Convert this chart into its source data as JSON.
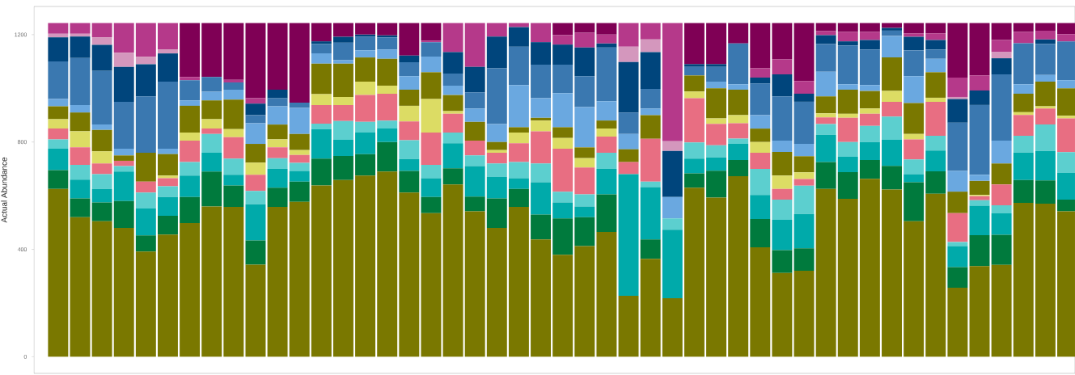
{
  "chart_data": {
    "type": "bar",
    "stacked": true,
    "ylabel": "Actual Abundance",
    "categories": [
      null,
      null,
      null,
      null,
      null,
      null,
      null,
      null,
      null,
      null,
      null,
      null,
      null,
      null,
      null,
      null,
      null,
      null,
      null,
      null,
      null,
      null,
      null,
      null,
      null,
      null,
      null,
      null,
      null,
      null,
      null,
      null,
      null,
      null,
      null,
      null,
      null,
      null,
      null,
      null,
      null,
      null,
      null,
      null,
      null,
      null,
      null
    ],
    "ylim": [
      -62,
      1305
    ],
    "yticks": [
      0,
      400,
      800,
      1200
    ],
    "series": [
      {
        "color": "#7a7800",
        "values": [
          625,
          520,
          505,
          480,
          392,
          455,
          498,
          560,
          558,
          343,
          558,
          577,
          638,
          658,
          675,
          690,
          612,
          535,
          642,
          542,
          480,
          558,
          437,
          380,
          412,
          465,
          227,
          365,
          218,
          630,
          593,
          673,
          408,
          312,
          320,
          625,
          588,
          663,
          623,
          505,
          607,
          257,
          338,
          342,
          573,
          570,
          542
        ]
      },
      {
        "color": "#007a3d",
        "values": [
          70,
          70,
          70,
          100,
          60,
          70,
          97,
          130,
          80,
          90,
          72,
          75,
          100,
          90,
          80,
          110,
          80,
          60,
          60,
          55,
          110,
          67,
          93,
          135,
          108,
          140,
          0,
          72,
          0,
          53,
          100,
          60,
          105,
          85,
          84,
          100,
          100,
          70,
          88,
          145,
          84,
          77,
          115,
          112,
          85,
          87,
          43
        ]
      },
      {
        "color": "#00aaaa",
        "values": [
          80,
          70,
          50,
          110,
          100,
          70,
          80,
          70,
          40,
          135,
          70,
          40,
          110,
          60,
          80,
          50,
          45,
          70,
          93,
          113,
          80,
          40,
          120,
          60,
          40,
          95,
          453,
          195,
          255,
          55,
          50,
          60,
          90,
          113,
          128,
          102,
          57,
          67,
          97,
          30,
          77,
          78,
          110,
          80,
          103,
          110,
          100
        ]
      },
      {
        "color": "#5ccfcf",
        "values": [
          35,
          55,
          55,
          20,
          60,
          40,
          50,
          70,
          60,
          50,
          40,
          30,
          20,
          70,
          40,
          30,
          70,
          50,
          40,
          40,
          50,
          60,
          70,
          40,
          45,
          60,
          0,
          20,
          42,
          60,
          45,
          20,
          97,
          75,
          105,
          40,
          55,
          60,
          87,
          55,
          55,
          15,
          20,
          30,
          62,
          98,
          77
        ]
      },
      {
        "color": "#e86e82",
        "values": [
          40,
          65,
          40,
          20,
          40,
          30,
          80,
          20,
          80,
          60,
          40,
          30,
          70,
          60,
          100,
          100,
          70,
          120,
          70,
          55,
          40,
          70,
          120,
          160,
          100,
          60,
          45,
          160,
          0,
          165,
          80,
          57,
          60,
          40,
          25,
          25,
          90,
          45,
          55,
          75,
          127,
          108,
          15,
          78,
          78,
          60,
          126
        ]
      },
      {
        "color": "#dcdc64",
        "values": [
          35,
          60,
          45,
          0,
          0,
          10,
          30,
          35,
          30,
          45,
          30,
          18,
          40,
          30,
          50,
          30,
          58,
          125,
          10,
          0,
          10,
          40,
          40,
          40,
          35,
          30,
          0,
          0,
          0,
          25,
          20,
          30,
          40,
          50,
          25,
          15,
          15,
          20,
          40,
          20,
          15,
          0,
          5,
          0,
          10,
          8,
          10
        ]
      },
      {
        "color": "#7a7800",
        "values": [
          48,
          70,
          80,
          20,
          108,
          80,
          100,
          70,
          110,
          70,
          55,
          60,
          114,
          124,
          90,
          100,
          60,
          100,
          60,
          70,
          30,
          20,
          10,
          40,
          40,
          30,
          48,
          88,
          0,
          60,
          112,
          95,
          50,
          88,
          60,
          63,
          90,
          65,
          125,
          115,
          95,
          80,
          52,
          78,
          69,
          92,
          102
        ]
      },
      {
        "color": "#6aa8e0",
        "values": [
          27,
          28,
          20,
          25,
          0,
          20,
          20,
          32,
          37,
          77,
          68,
          97,
          38,
          13,
          27,
          35,
          50,
          58,
          35,
          50,
          67,
          157,
          73,
          127,
          150,
          72,
          57,
          25,
          80,
          0,
          25,
          20,
          50,
          42,
          46,
          92,
          20,
          22,
          80,
          100,
          50,
          77,
          23,
          85,
          35,
          25,
          30
        ]
      },
      {
        "color": "#3a78b0",
        "values": [
          140,
          175,
          200,
          175,
          210,
          250,
          75,
          55,
          27,
          30,
          30,
          20,
          35,
          65,
          50,
          45,
          52,
          54,
          45,
          60,
          208,
          143,
          125,
          106,
          115,
          200,
          80,
          73,
          0,
          32,
          55,
          152,
          118,
          165,
          157,
          103,
          145,
          133,
          20,
          97,
          35,
          180,
          260,
          247,
          153,
          115,
          145
        ]
      },
      {
        "color": "#00457c",
        "values": [
          90,
          80,
          97,
          130,
          120,
          105,
          0,
          0,
          0,
          43,
          32,
          0,
          10,
          22,
          8,
          7,
          25,
          0,
          80,
          95,
          118,
          73,
          84,
          75,
          107,
          15,
          188,
          137,
          172,
          10,
          10,
          0,
          22,
          82,
          30,
          33,
          15,
          35,
          10,
          50,
          35,
          88,
          54,
          60,
          0,
          17,
          0
        ]
      },
      {
        "color": "#d497bd",
        "values": [
          13,
          10,
          28,
          53,
          28,
          15,
          0,
          0,
          0,
          0,
          0,
          0,
          0,
          0,
          0,
          0,
          0,
          0,
          0,
          0,
          0,
          0,
          0,
          0,
          0,
          0,
          57,
          47,
          36,
          0,
          0,
          0,
          0,
          0,
          0,
          0,
          0,
          0,
          0,
          0,
          0,
          8,
          0,
          23,
          0,
          0,
          0
        ]
      },
      {
        "color": "#b5398a",
        "values": [
          40,
          40,
          53,
          110,
          125,
          98,
          12,
          0,
          10,
          20,
          0,
          0,
          0,
          0,
          0,
          0,
          0,
          6,
          108,
          163,
          50,
          15,
          71,
          35,
          55,
          33,
          88,
          61,
          440,
          0,
          0,
          0,
          35,
          56,
          47,
          15,
          35,
          30,
          0,
          13,
          25,
          72,
          56,
          45,
          42,
          33,
          27
        ]
      },
      {
        "color": "#7f0055",
        "values": [
          0,
          0,
          0,
          0,
          0,
          0,
          201,
          201,
          211,
          280,
          248,
          296,
          68,
          51,
          43,
          46,
          121,
          65,
          0,
          0,
          0,
          0,
          0,
          45,
          36,
          43,
          0,
          0,
          0,
          153,
          153,
          76,
          168,
          135,
          216,
          30,
          33,
          33,
          18,
          38,
          38,
          203,
          195,
          63,
          33,
          28,
          41
        ]
      }
    ]
  }
}
